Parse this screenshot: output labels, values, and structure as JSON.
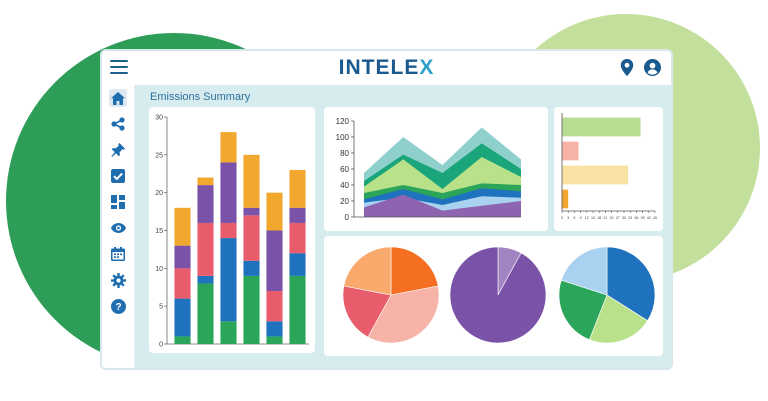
{
  "app": {
    "logo_main": "INTELE",
    "logo_x": "X",
    "page_title": "Emissions Summary"
  },
  "colors": {
    "brand_blue": "#1a5a8e",
    "accent_cyan": "#2fa0c8",
    "sidebar_icon": "#1f6fb0"
  },
  "sidebar": {
    "items": [
      {
        "icon": "home-icon",
        "active": true
      },
      {
        "icon": "share-nodes-icon",
        "active": false
      },
      {
        "icon": "pin-icon",
        "active": false
      },
      {
        "icon": "checkbox-icon",
        "active": false
      },
      {
        "icon": "dashboard-grid-icon",
        "active": false
      },
      {
        "icon": "eye-icon",
        "active": false
      },
      {
        "icon": "calendar-icon",
        "active": false
      },
      {
        "icon": "gear-icon",
        "active": false
      },
      {
        "icon": "help-icon",
        "active": false
      }
    ]
  },
  "topbar_icons": [
    "location-pin-icon",
    "user-icon"
  ],
  "chart_data": [
    {
      "type": "bar",
      "stacked": true,
      "categories": [
        "",
        "",
        "",
        "",
        "",
        ""
      ],
      "ylim": [
        0,
        30
      ],
      "yticks": [
        "0",
        "5",
        "10",
        "15",
        "20",
        "25",
        "30"
      ],
      "grid": false,
      "series": [
        {
          "color": "#2ba55a",
          "values": [
            1,
            8,
            3,
            9,
            1,
            9
          ]
        },
        {
          "color": "#1f72bd",
          "values": [
            5,
            1,
            11,
            2,
            2,
            3
          ]
        },
        {
          "color": "#e85c6c",
          "values": [
            4,
            7,
            2,
            6,
            4,
            4
          ]
        },
        {
          "color": "#7a52a8",
          "values": [
            3,
            5,
            8,
            1,
            8,
            2
          ]
        },
        {
          "color": "#f2a72e",
          "values": [
            5,
            1,
            4,
            7,
            5,
            5
          ]
        }
      ]
    },
    {
      "type": "area",
      "x": [
        0,
        1,
        2,
        3,
        4
      ],
      "ylim": [
        0,
        120
      ],
      "yticks": [
        "0",
        "20",
        "40",
        "60",
        "80",
        "100",
        "120"
      ],
      "grid": false,
      "series": [
        {
          "color": "#8fd0cd",
          "values": [
            55,
            100,
            65,
            112,
            72
          ]
        },
        {
          "color": "#1aa67a",
          "values": [
            45,
            78,
            55,
            92,
            60
          ]
        },
        {
          "color": "#b9e18a",
          "values": [
            38,
            72,
            35,
            75,
            50
          ]
        },
        {
          "color": "#2aa55a",
          "values": [
            30,
            40,
            30,
            42,
            40
          ]
        },
        {
          "color": "#1f72bd",
          "values": [
            22,
            35,
            22,
            36,
            32
          ]
        },
        {
          "color": "#a9d2f0",
          "values": [
            18,
            24,
            15,
            26,
            24
          ]
        },
        {
          "color": "#8e63b0",
          "values": [
            12,
            28,
            8,
            14,
            20
          ]
        }
      ]
    },
    {
      "type": "bar",
      "orientation": "horizontal",
      "categories": [
        "",
        "",
        "",
        ""
      ],
      "xlim": [
        0,
        45
      ],
      "xticks": [
        "0",
        "3",
        "6",
        "9",
        "12",
        "15",
        "18",
        "21",
        "24",
        "27",
        "30",
        "33",
        "36",
        "39",
        "42",
        "45"
      ],
      "grid": false,
      "series": [
        {
          "colors": [
            "#b7dd93",
            "#f7b3a8",
            "#f9e1a3",
            "#f2a72e"
          ],
          "values": [
            38,
            8,
            32,
            3
          ]
        }
      ]
    },
    {
      "type": "pie",
      "slices": [
        {
          "color": "#f46f22",
          "value": 22
        },
        {
          "color": "#f7b3a8",
          "value": 36
        },
        {
          "color": "#e85c6c",
          "value": 20
        },
        {
          "color": "#f9a96c",
          "value": 22
        }
      ]
    },
    {
      "type": "pie",
      "slices": [
        {
          "color": "#a184c2",
          "value": 8
        },
        {
          "color": "#7a52a8",
          "value": 92
        }
      ]
    },
    {
      "type": "pie",
      "slices": [
        {
          "color": "#1f72bd",
          "value": 34
        },
        {
          "color": "#b9e18a",
          "value": 22
        },
        {
          "color": "#2aa55a",
          "value": 24
        },
        {
          "color": "#a9d2f0",
          "value": 20
        }
      ]
    }
  ]
}
